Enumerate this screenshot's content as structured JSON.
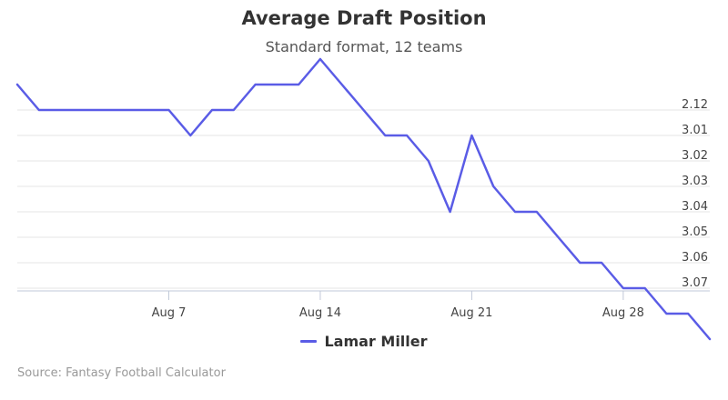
{
  "chart_data": {
    "type": "line",
    "title": "Average Draft Position",
    "subtitle": "Standard format, 12 teams",
    "xlabel": "",
    "ylabel": "",
    "x_ticks": [
      "Aug 7",
      "Aug 14",
      "Aug 21",
      "Aug 28"
    ],
    "y_ticks": [
      "2.12",
      "3.01",
      "3.02",
      "3.03",
      "3.04",
      "3.05",
      "3.06",
      "3.07"
    ],
    "y_axis_side": "right",
    "y_reversed": true,
    "grid": true,
    "legend_position": "bottom-center",
    "color": "#5a5ce6",
    "series": [
      {
        "name": "Lamar Miller",
        "x": [
          "Jul 31",
          "Aug 1",
          "Aug 2",
          "Aug 3",
          "Aug 4",
          "Aug 5",
          "Aug 6",
          "Aug 7",
          "Aug 8",
          "Aug 9",
          "Aug 10",
          "Aug 11",
          "Aug 12",
          "Aug 13",
          "Aug 14",
          "Aug 15",
          "Aug 16",
          "Aug 17",
          "Aug 18",
          "Aug 19",
          "Aug 20",
          "Aug 21",
          "Aug 22",
          "Aug 23",
          "Aug 24",
          "Aug 25",
          "Aug 26",
          "Aug 27",
          "Aug 28",
          "Aug 29",
          "Aug 30",
          "Aug 31",
          "Sep 1"
        ],
        "values": [
          2.111,
          2.118,
          2.119,
          2.118,
          2.119,
          2.119,
          2.119,
          2.124,
          2.125,
          2.12,
          2.115,
          2.112,
          2.109,
          2.107,
          2.105,
          2.107,
          2.115,
          2.126,
          2.132,
          2.14,
          2.157,
          3.012,
          3.028,
          3.037,
          3.045,
          3.054,
          3.059,
          3.063,
          3.066,
          3.072,
          3.081,
          3.085,
          3.086
        ]
      }
    ]
  },
  "source": "Source: Fantasy Football Calculator"
}
